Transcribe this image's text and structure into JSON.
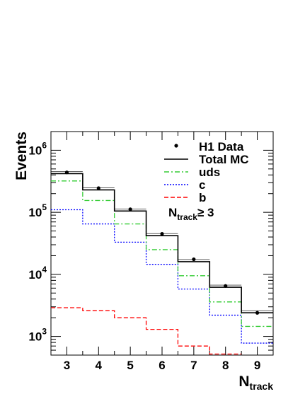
{
  "chart_data": {
    "type": "step-histogram",
    "xlabel": {
      "main": "N",
      "sub": "track"
    },
    "ylabel": "Events",
    "x_ticks": [
      "3",
      "4",
      "5",
      "6",
      "7",
      "8",
      "9"
    ],
    "xlim": [
      2.5,
      9.5
    ],
    "ylim": [
      500,
      2000000
    ],
    "y_scale": "log",
    "y_ticks": [
      {
        "value": 1000,
        "base": "10",
        "exp": "3"
      },
      {
        "value": 10000,
        "base": "10",
        "exp": "4"
      },
      {
        "value": 100000,
        "base": "10",
        "exp": "5"
      },
      {
        "value": 1000000,
        "base": "10",
        "exp": "6"
      }
    ],
    "bin_edges": [
      2.5,
      3.5,
      4.5,
      5.5,
      6.5,
      7.5,
      8.5,
      9.5
    ],
    "series": [
      {
        "name": "Total MC",
        "style": "solid",
        "color": "#000000",
        "values": [
          420000,
          230000,
          105000,
          42000,
          16000,
          6200,
          2400
        ]
      },
      {
        "name": "uds",
        "style": "dashdot",
        "color": "#33cc33",
        "values": [
          320000,
          155000,
          65000,
          25000,
          9500,
          3600,
          1450
        ]
      },
      {
        "name": "c",
        "style": "dotted",
        "color": "#0000ff",
        "values": [
          110000,
          65000,
          33000,
          14500,
          5800,
          2200,
          780
        ]
      },
      {
        "name": "b",
        "style": "dashed",
        "color": "#ff0000",
        "values": [
          2900,
          2600,
          2000,
          1300,
          700,
          520,
          null
        ]
      }
    ],
    "data_points": {
      "name": "H1 Data",
      "x": [
        3,
        4,
        5,
        6,
        7,
        8,
        9
      ],
      "y": [
        440000,
        245000,
        112000,
        45000,
        17500,
        6500,
        2400
      ]
    },
    "annotation": {
      "main": "N",
      "sub": "track",
      "rest": "≥ 3"
    },
    "legend_position": "top-right"
  }
}
